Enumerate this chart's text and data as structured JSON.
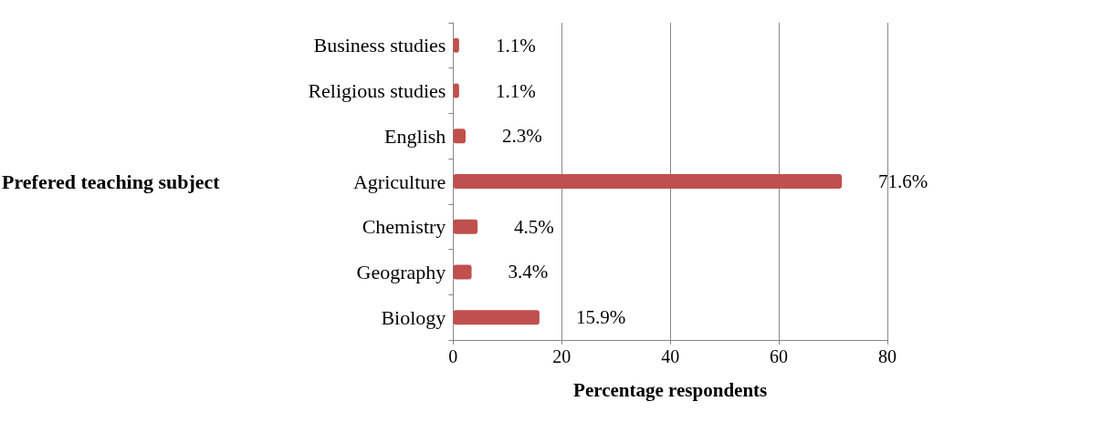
{
  "chart_data": {
    "type": "bar",
    "orientation": "horizontal",
    "categories": [
      "Business studies",
      "Religious studies",
      "English",
      "Agriculture",
      "Chemistry",
      "Geography",
      "Biology"
    ],
    "values": [
      1.1,
      1.1,
      2.3,
      71.6,
      4.5,
      3.4,
      15.9
    ],
    "value_labels": [
      "1.1%",
      "1.1%",
      "2.3%",
      "71.6%",
      "4.5%",
      "3.4%",
      "15.9%"
    ],
    "color": "#c0504d",
    "xlim": [
      0,
      80
    ],
    "xticks": [
      0,
      20,
      40,
      60,
      80
    ],
    "grid": "x",
    "xlabel": "Percentage respondents",
    "ylabel": "Prefered teaching subject"
  }
}
